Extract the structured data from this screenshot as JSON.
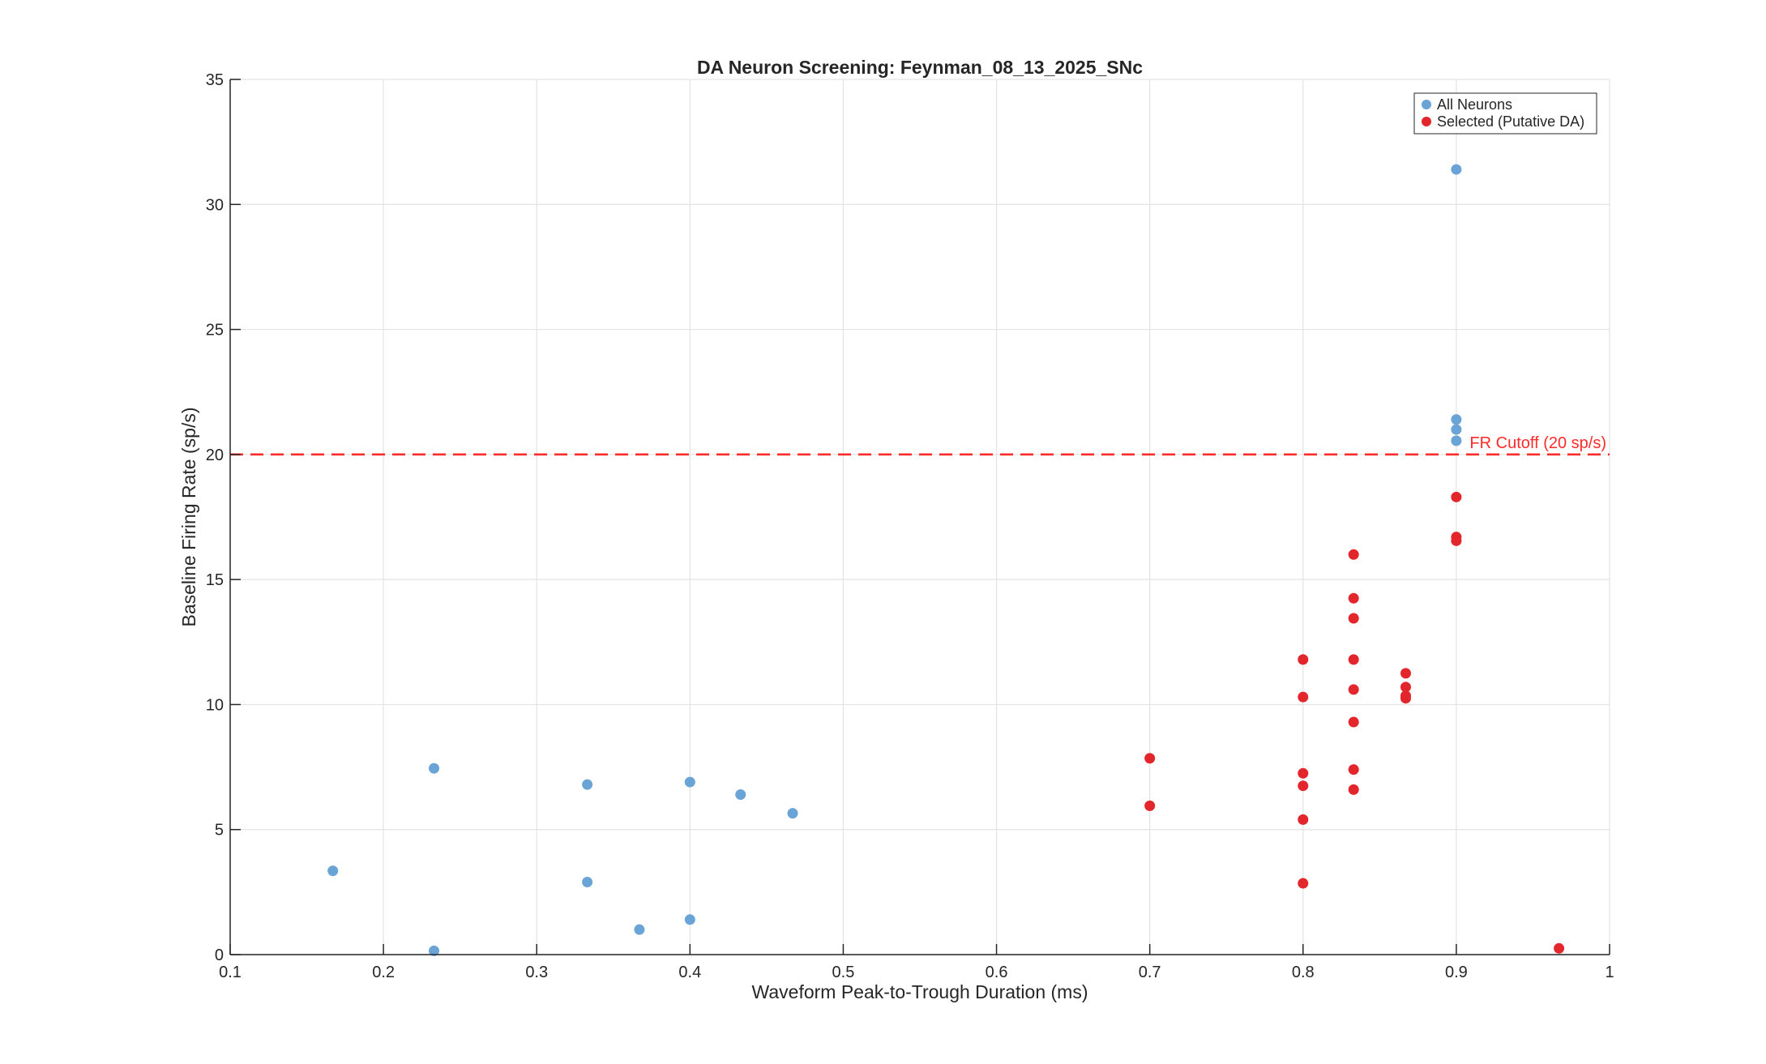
{
  "chart_data": {
    "type": "scatter",
    "title": "DA Neuron Screening: Feynman_08_13_2025_SNc",
    "xlabel": "Waveform Peak-to-Trough Duration (ms)",
    "ylabel": "Baseline Firing Rate (sp/s)",
    "xlim": [
      0.1,
      1
    ],
    "ylim": [
      0,
      35
    ],
    "xticks": [
      0.1,
      0.2,
      0.3,
      0.4,
      0.5,
      0.6,
      0.7,
      0.8,
      0.9,
      1
    ],
    "xtick_labels": [
      "0.1",
      "0.2",
      "0.3",
      "0.4",
      "0.5",
      "0.6",
      "0.7",
      "0.8",
      "0.9",
      "1"
    ],
    "yticks": [
      0,
      5,
      10,
      15,
      20,
      25,
      30,
      35
    ],
    "ytick_labels": [
      "0",
      "5",
      "10",
      "15",
      "20",
      "25",
      "30",
      "35"
    ],
    "grid": true,
    "legend_position": "top-right",
    "series": [
      {
        "name": "All Neurons",
        "color": "#6aa4d6",
        "points": [
          [
            0.167,
            3.35
          ],
          [
            0.233,
            7.45
          ],
          [
            0.233,
            0.15
          ],
          [
            0.333,
            6.8
          ],
          [
            0.333,
            2.9
          ],
          [
            0.367,
            1.0
          ],
          [
            0.4,
            6.9
          ],
          [
            0.4,
            1.4
          ],
          [
            0.433,
            6.4
          ],
          [
            0.467,
            5.65
          ],
          [
            0.9,
            31.4
          ],
          [
            0.9,
            21.4
          ],
          [
            0.9,
            21.0
          ],
          [
            0.9,
            20.55
          ]
        ]
      },
      {
        "name": "Selected (Putative DA)",
        "color": "#e3262b",
        "points": [
          [
            0.7,
            7.85
          ],
          [
            0.7,
            5.95
          ],
          [
            0.8,
            11.8
          ],
          [
            0.8,
            10.3
          ],
          [
            0.8,
            7.25
          ],
          [
            0.8,
            6.75
          ],
          [
            0.8,
            5.4
          ],
          [
            0.8,
            2.85
          ],
          [
            0.833,
            16.0
          ],
          [
            0.833,
            14.25
          ],
          [
            0.833,
            13.45
          ],
          [
            0.833,
            11.8
          ],
          [
            0.833,
            10.6
          ],
          [
            0.833,
            9.3
          ],
          [
            0.833,
            7.4
          ],
          [
            0.833,
            6.6
          ],
          [
            0.867,
            11.25
          ],
          [
            0.867,
            10.7
          ],
          [
            0.867,
            10.35
          ],
          [
            0.867,
            10.25
          ],
          [
            0.9,
            18.3
          ],
          [
            0.9,
            16.7
          ],
          [
            0.9,
            16.55
          ],
          [
            0.967,
            0.25
          ]
        ]
      }
    ],
    "reference_line": {
      "y": 20,
      "label": "FR Cutoff (20 sp/s)",
      "color": "#ff2a2a",
      "style": "dashed"
    }
  }
}
